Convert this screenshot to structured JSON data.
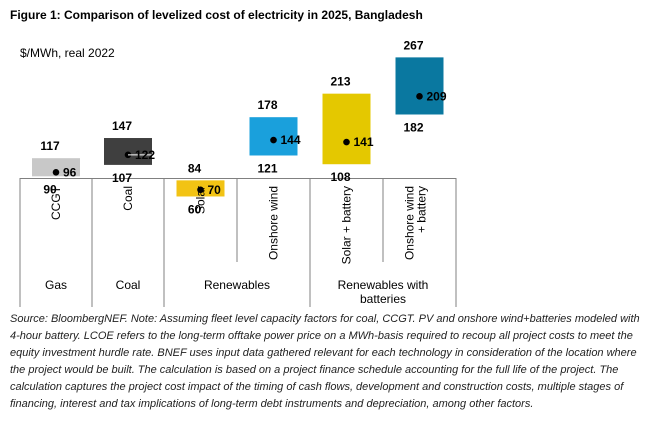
{
  "title": "Figure 1:  Comparison of levelized cost of electricity in 2025, Bangladesh",
  "source_note": "Source: BloombergNEF. Note: Assuming fleet level capacity factors for coal, CCGT. PV and onshore wind+batteries modeled with 4-hour battery.  LCOE refers to the long-term offtake power price on a MWh-basis required to recoup all project costs to meet the equity investment hurdle rate. BNEF uses input data gathered relevant for each technology in consideration of the location where the project would be built. The calculation is based on a project finance schedule accounting for the full life of the project. The calculation captures the project cost impact of the timing of cash flows, development and construction costs, multiple stages of financing, interest and tax implications of long-term debt instruments and depreciation, among other factors.",
  "colors": {
    "CCGT": "#c8c8c8",
    "Coal": "#3f3f3f",
    "Solar": "#f2c314",
    "Onshore wind": "#1aa0dc",
    "Solar + battery": "#e4c800",
    "Onshore wind + battery": "#0a78a0"
  },
  "chart_data": {
    "type": "range",
    "ylabel": "$/MWh, real 2022",
    "categories": [
      "CCGT",
      "Coal",
      "Solar",
      "Onshore wind",
      "Solar + battery",
      "Onshore wind + battery"
    ],
    "category_labels": [
      [
        "CCGT"
      ],
      [
        "Coal"
      ],
      [
        "Solar"
      ],
      [
        "Onshore wind"
      ],
      [
        "Solar + battery"
      ],
      [
        "Onshore wind",
        "+ battery"
      ]
    ],
    "groups": [
      {
        "label": [
          "Gas"
        ],
        "categories": [
          "CCGT"
        ]
      },
      {
        "label": [
          "Coal"
        ],
        "categories": [
          "Coal"
        ]
      },
      {
        "label": [
          "Renewables"
        ],
        "categories": [
          "Solar",
          "Onshore wind"
        ]
      },
      {
        "label": [
          "Renewables with",
          "batteries"
        ],
        "categories": [
          "Solar + battery",
          "Onshore wind + battery"
        ]
      }
    ],
    "series": [
      {
        "name": "High",
        "values": [
          117,
          147,
          84,
          178,
          213,
          267
        ]
      },
      {
        "name": "Low",
        "values": [
          90,
          107,
          60,
          121,
          108,
          182
        ]
      },
      {
        "name": "Mid",
        "values": [
          96,
          122,
          70,
          144,
          141,
          209
        ]
      }
    ]
  }
}
